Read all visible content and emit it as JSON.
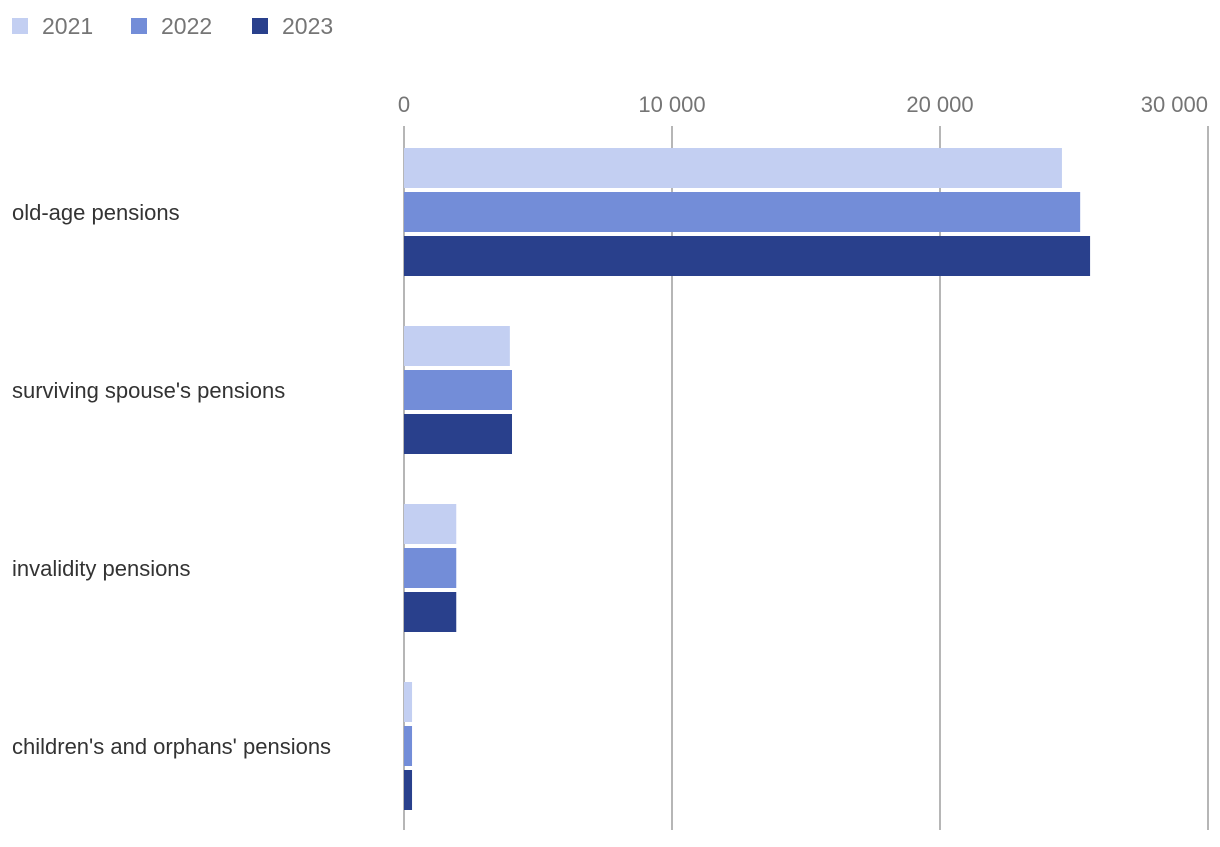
{
  "chart_data": {
    "type": "bar",
    "orientation": "horizontal",
    "categories": [
      "old-age pensions",
      "surviving spouse's pensions",
      "invalidity pensions",
      "children's and orphans' pensions"
    ],
    "series": [
      {
        "name": "2021",
        "color": "#c3cff2",
        "values": [
          24550,
          3950,
          1950,
          300
        ]
      },
      {
        "name": "2022",
        "color": "#738dd8",
        "values": [
          25230,
          4030,
          1950,
          300
        ]
      },
      {
        "name": "2023",
        "color": "#29408c",
        "values": [
          25600,
          4030,
          1950,
          300
        ]
      }
    ],
    "x_ticks": [
      {
        "value": 0,
        "label": "0"
      },
      {
        "value": 10000,
        "label": "10 000"
      },
      {
        "value": 20000,
        "label": "20 000"
      },
      {
        "value": 30000,
        "label": "30 000"
      }
    ],
    "xlim": [
      0,
      30000
    ],
    "title": "",
    "xlabel": "",
    "ylabel": "",
    "grid": "vertical",
    "legend_position": "top-left",
    "axis_tick_color": "#757575",
    "category_label_color": "#333333",
    "gridline_color": "#9e9e9e"
  }
}
